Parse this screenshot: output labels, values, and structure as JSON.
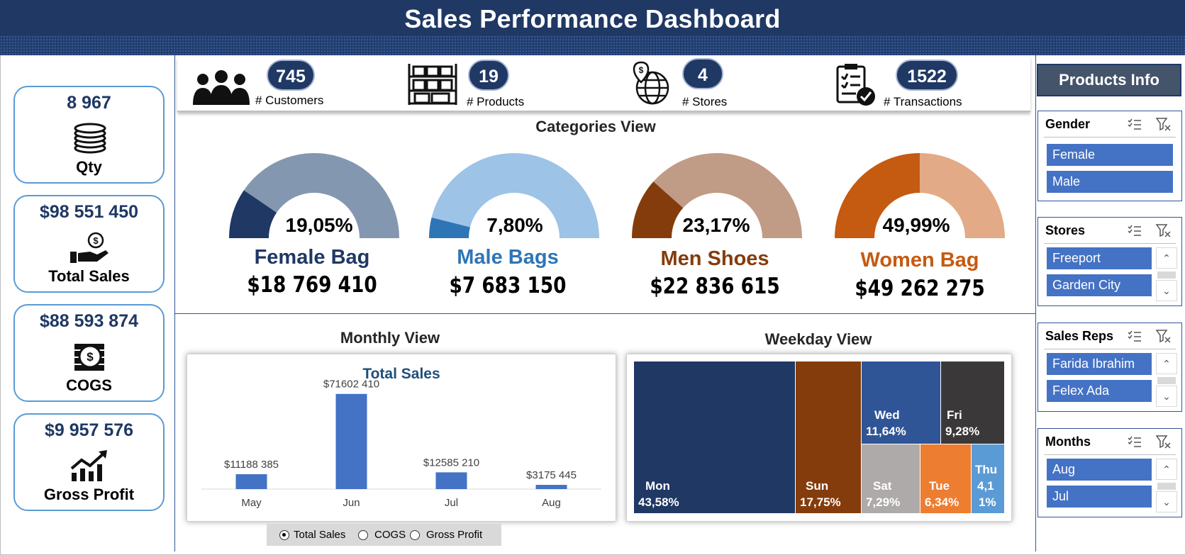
{
  "header": {
    "title": "Sales Performance Dashboard"
  },
  "kpis": [
    {
      "value": "8 967",
      "label": "Qty",
      "icon": "coins-stack-icon"
    },
    {
      "value": "$98 551 450",
      "label": "Total Sales",
      "icon": "hand-money-icon"
    },
    {
      "value": "$88 593 874",
      "label": "COGS",
      "icon": "cash-coin-icon"
    },
    {
      "value": "$9 957 576",
      "label": "Gross Profit",
      "icon": "growth-chart-icon"
    }
  ],
  "counters": [
    {
      "value": "745",
      "label": "# Customers",
      "icon": "people-icon"
    },
    {
      "value": "19",
      "label": "# Products",
      "icon": "shelves-icon"
    },
    {
      "value": "4",
      "label": "# Stores",
      "icon": "globe-pin-icon"
    },
    {
      "value": "1522",
      "label": "# Transactions",
      "icon": "clipboard-check-icon"
    }
  ],
  "categories": {
    "title": "Categories View",
    "items": [
      {
        "pct": "19,05%",
        "pct_value": 0.1905,
        "name": "Female Bag",
        "amount": "$18 769 410",
        "color_main": "#1f3864",
        "color_rest": "#8497b0",
        "name_color": "#1f3864"
      },
      {
        "pct": "7,80%",
        "pct_value": 0.078,
        "name": "Male Bags",
        "amount": "$7 683 150",
        "color_main": "#2e75b6",
        "color_rest": "#9dc3e6",
        "name_color": "#2e75b6"
      },
      {
        "pct": "23,17%",
        "pct_value": 0.2317,
        "name": "Men Shoes",
        "amount": "$22 836 615",
        "color_main": "#843c0c",
        "color_rest": "#c09b86",
        "name_color": "#843c0c"
      },
      {
        "pct": "49,99%",
        "pct_value": 0.4999,
        "name": "Women Bag",
        "amount": "$49 262 275",
        "color_main": "#c55a11",
        "color_rest": "#e2aa86",
        "name_color": "#c55a11"
      }
    ]
  },
  "monthly": {
    "title": "Monthly View",
    "chart_title": "Total Sales"
  },
  "chart_data": {
    "type": "bar",
    "title": "Total Sales",
    "categories": [
      "May",
      "Jun",
      "Jul",
      "Aug"
    ],
    "values": [
      11188385,
      71602410,
      12585210,
      3175445
    ],
    "labels": [
      "$11188 385",
      "$71602 410",
      "$12585 210",
      "$3175 445"
    ],
    "color": "#4472c4",
    "ylim": [
      0,
      80000000
    ],
    "grid": false
  },
  "weekday": {
    "title": "Weekday View",
    "items": [
      {
        "day": "Mon",
        "pct": "43,58%",
        "color": "#1f3864"
      },
      {
        "day": "Sun",
        "pct": "17,75%",
        "color": "#843c0c"
      },
      {
        "day": "Wed",
        "pct": "11,64%",
        "color": "#2f5597"
      },
      {
        "day": "Fri",
        "pct": "9,28%",
        "color": "#3a3838"
      },
      {
        "day": "Sat",
        "pct": "7,29%",
        "color": "#aeaaaa"
      },
      {
        "day": "Tue",
        "pct": "6,34%",
        "color": "#ed7d31"
      },
      {
        "day": "Thu",
        "pct_line1": "4,1",
        "pct_line2": "1%",
        "color": "#5b9bd5"
      }
    ]
  },
  "measure_selector": {
    "options": [
      "Total Sales",
      "COGS",
      "Gross Profit"
    ],
    "selected": "Total Sales"
  },
  "products_info": {
    "title": "Products Info"
  },
  "slicers": [
    {
      "title": "Gender",
      "items": [
        "Female",
        "Male"
      ]
    },
    {
      "title": "Stores",
      "items": [
        "Freeport",
        "Garden City"
      ]
    },
    {
      "title": "Sales Reps",
      "items": [
        "Farida Ibrahim",
        "Felex Ada"
      ]
    },
    {
      "title": "Months",
      "items": [
        "Aug",
        "Jul"
      ]
    }
  ]
}
